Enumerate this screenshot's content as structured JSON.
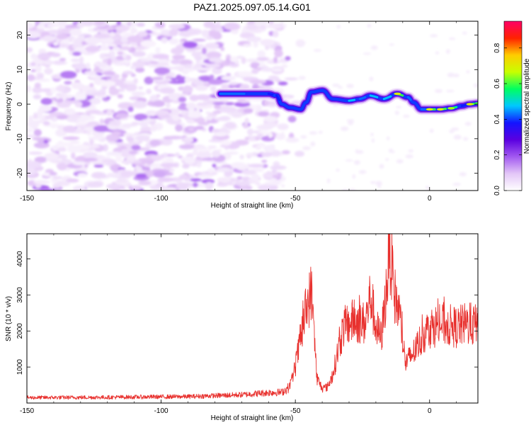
{
  "title": "PAZ1.2025.097.05.14.G01",
  "chart_data": [
    {
      "type": "heatmap",
      "xlabel": "Height of straight line (km)",
      "ylabel": "Frequency (Hz)",
      "xlim": [
        -150,
        18
      ],
      "ylim": [
        -25,
        24
      ],
      "x_ticks": [
        "-150",
        "-100",
        "-50",
        "0"
      ],
      "y_ticks": [
        "20",
        "10",
        "0",
        "-10",
        "-20"
      ],
      "x_tick_values": [
        -150,
        -100,
        -50,
        0
      ],
      "y_tick_values": [
        20,
        10,
        0,
        -10,
        -20
      ],
      "colorbar": {
        "label": "Normalized spectral amplitude",
        "range": [
          0,
          0.95
        ],
        "ticks": [
          "0.0",
          "0.2",
          "0.4",
          "0.6",
          "0.8"
        ],
        "tick_values": [
          0.0,
          0.2,
          0.4,
          0.6,
          0.8
        ]
      },
      "colormap": [
        "#ffffff",
        "#e3c6f7",
        "#a259f0",
        "#5a00e0",
        "#1414ff",
        "#00c8ff",
        "#00ff60",
        "#c8ff00",
        "#ffcc00",
        "#ff2200",
        "#ff0066"
      ],
      "noise_region_x": [
        -150,
        -56
      ],
      "signal_ridge": [
        {
          "x": -78,
          "f": 3,
          "amp": 0.5
        },
        {
          "x": -60,
          "f": 3,
          "amp": 0.45
        },
        {
          "x": -57,
          "f": 2.5,
          "amp": 0.45
        },
        {
          "x": -55,
          "f": 0,
          "amp": 0.4
        },
        {
          "x": -52,
          "f": -1,
          "amp": 0.35
        },
        {
          "x": -48,
          "f": -1.5,
          "amp": 0.35
        },
        {
          "x": -46,
          "f": 0.5,
          "amp": 0.3
        },
        {
          "x": -44,
          "f": 3.5,
          "amp": 0.3
        },
        {
          "x": -40,
          "f": 4,
          "amp": 0.3
        },
        {
          "x": -36,
          "f": 1.5,
          "amp": 0.4
        },
        {
          "x": -30,
          "f": 1,
          "amp": 0.55
        },
        {
          "x": -26,
          "f": 1.5,
          "amp": 0.5
        },
        {
          "x": -22,
          "f": 2.5,
          "amp": 0.55
        },
        {
          "x": -17,
          "f": 1.5,
          "amp": 0.55
        },
        {
          "x": -12,
          "f": 3,
          "amp": 0.7
        },
        {
          "x": -8,
          "f": 2,
          "amp": 0.5
        },
        {
          "x": -6,
          "f": 0.5,
          "amp": 0.4
        },
        {
          "x": -3,
          "f": -1.5,
          "amp": 0.5
        },
        {
          "x": 0,
          "f": -1.5,
          "amp": 0.7
        },
        {
          "x": 4,
          "f": -1.5,
          "amp": 0.7
        },
        {
          "x": 8,
          "f": -1.2,
          "amp": 0.65
        },
        {
          "x": 12,
          "f": -0.5,
          "amp": 0.45
        },
        {
          "x": 15,
          "f": 0,
          "amp": 0.7
        },
        {
          "x": 18,
          "f": 0.2,
          "amp": 0.6
        }
      ]
    },
    {
      "type": "line",
      "xlabel": "Height of straight line (km)",
      "ylabel": "SNR (10 * v/v)",
      "xlim": [
        -150,
        18
      ],
      "ylim": [
        0,
        4700
      ],
      "x_ticks": [
        "-150",
        "-100",
        "-50",
        "0"
      ],
      "y_ticks": [
        "1000",
        "2000",
        "3000",
        "4000"
      ],
      "x_tick_values": [
        -150,
        -100,
        -50,
        0
      ],
      "y_tick_values": [
        1000,
        2000,
        3000,
        4000
      ],
      "line_color": "#e8312e",
      "envelope": [
        {
          "x": -150,
          "y": 150
        },
        {
          "x": -120,
          "y": 160
        },
        {
          "x": -90,
          "y": 180
        },
        {
          "x": -70,
          "y": 230
        },
        {
          "x": -60,
          "y": 290
        },
        {
          "x": -55,
          "y": 300
        },
        {
          "x": -52,
          "y": 450
        },
        {
          "x": -50,
          "y": 1000
        },
        {
          "x": -48,
          "y": 1800
        },
        {
          "x": -46,
          "y": 2600
        },
        {
          "x": -44,
          "y": 3100
        },
        {
          "x": -43,
          "y": 2000
        },
        {
          "x": -42,
          "y": 700
        },
        {
          "x": -40,
          "y": 400
        },
        {
          "x": -38,
          "y": 450
        },
        {
          "x": -36,
          "y": 800
        },
        {
          "x": -34,
          "y": 1500
        },
        {
          "x": -32,
          "y": 2100
        },
        {
          "x": -28,
          "y": 2300
        },
        {
          "x": -24,
          "y": 2200
        },
        {
          "x": -22,
          "y": 3000
        },
        {
          "x": -20,
          "y": 2100
        },
        {
          "x": -18,
          "y": 1800
        },
        {
          "x": -16,
          "y": 3200
        },
        {
          "x": -15,
          "y": 4400
        },
        {
          "x": -13,
          "y": 3000
        },
        {
          "x": -11,
          "y": 2400
        },
        {
          "x": -9,
          "y": 1100
        },
        {
          "x": -6,
          "y": 1400
        },
        {
          "x": -3,
          "y": 1800
        },
        {
          "x": 0,
          "y": 2100
        },
        {
          "x": 5,
          "y": 2200
        },
        {
          "x": 10,
          "y": 2100
        },
        {
          "x": 14,
          "y": 2200
        },
        {
          "x": 18,
          "y": 2150
        }
      ]
    }
  ]
}
